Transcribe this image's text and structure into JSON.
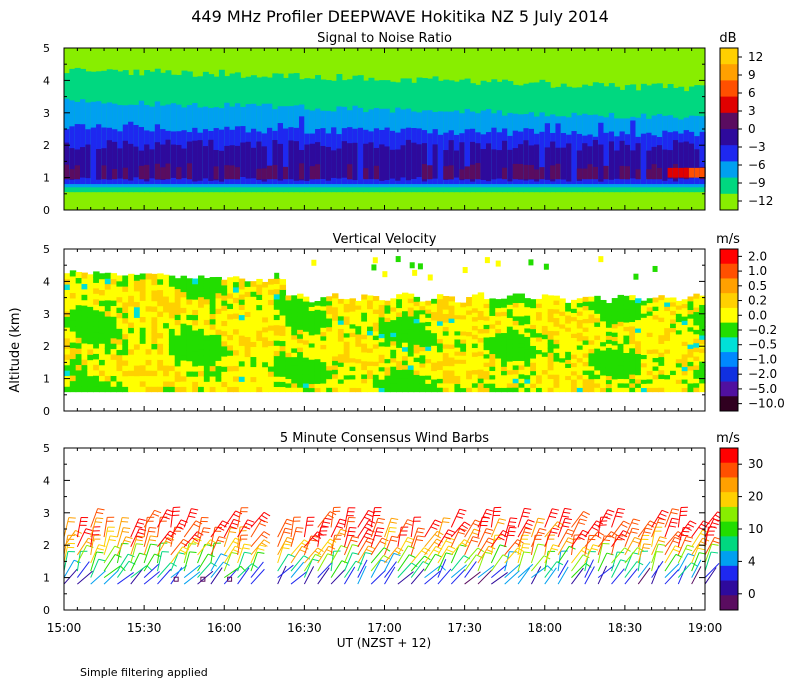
{
  "title": "449 MHz Profiler DEEPWAVE Hokitika NZ  5 July 2014",
  "ylabel": "Altitude (km)",
  "xlabel": "UT  (NZST + 12)",
  "x_ticks": [
    "15:00",
    "15:30",
    "16:00",
    "16:30",
    "17:00",
    "17:30",
    "18:00",
    "18:30",
    "19:00"
  ],
  "footnote": "Simple filtering applied",
  "chart_data": [
    {
      "type": "heatmap",
      "title": "Signal to Noise Ratio",
      "unit": "dB",
      "xlim": [
        "15:00",
        "19:00"
      ],
      "ylim": [
        0,
        5
      ],
      "yticks": [
        "0",
        "1",
        "2",
        "3",
        "4",
        "5"
      ],
      "colorbar": {
        "labels": [
          "12",
          "9",
          "6",
          "3",
          "0",
          "−3",
          "−6",
          "−9",
          "−12"
        ],
        "colors": [
          "#ffd000",
          "#ffa000",
          "#ff5000",
          "#e00000",
          "#5a0c60",
          "#2e0a9c",
          "#1e28f0",
          "#00a0f0",
          "#00d880",
          "#88ee00"
        ]
      },
      "layers": [
        {
          "band": "<-12",
          "color": "#88ee00",
          "approx_alt_km": "0.0-0.5 and above 4.3"
        },
        {
          "band": "-12 to -9",
          "color": "#00d880",
          "approx_alt_km": "3.3-4.3"
        },
        {
          "band": "-9 to -6",
          "color": "#00a0f0",
          "approx_alt_km": "2.6-3.3"
        },
        {
          "band": "-6 to -3",
          "color": "#1e28f0",
          "approx_alt_km": "0.8-2.5"
        },
        {
          "band": "-3 to 3",
          "color": "#2e0a9c",
          "approx_alt_km": "0.9-2.0"
        },
        {
          "band": "max near 19:00",
          "color": "#ff5000",
          "approx_alt_km": "1.0-1.3"
        }
      ]
    },
    {
      "type": "heatmap",
      "title": "Vertical Velocity",
      "unit": "m/s",
      "xlim": [
        "15:00",
        "19:00"
      ],
      "ylim": [
        0,
        5
      ],
      "yticks": [
        "0",
        "1",
        "2",
        "3",
        "4",
        "5"
      ],
      "colorbar": {
        "labels": [
          "2.0",
          "1.0",
          "0.5",
          "0.2",
          "0.0",
          "−0.2",
          "−0.5",
          "−1.0",
          "−2.0",
          "−5.0",
          "−10.0"
        ],
        "colors": [
          "#ff0000",
          "#ff5000",
          "#ffa000",
          "#ffd000",
          "#ffff00",
          "#22dd00",
          "#00e0d8",
          "#0088ff",
          "#1030e0",
          "#5010a0",
          "#300020"
        ]
      },
      "data_extent_km": {
        "bottom": 0.6,
        "top_start": 4.3,
        "top_end": 3.6
      },
      "dominant_values": [
        "0.0",
        "−0.2",
        "0.2"
      ]
    },
    {
      "type": "wind-barbs",
      "title": "5 Minute Consensus Wind Barbs",
      "unit": "m/s",
      "xlim": [
        "15:00",
        "19:00"
      ],
      "ylim": [
        0,
        5
      ],
      "yticks": [
        "0",
        "1",
        "2",
        "3",
        "4",
        "5"
      ],
      "colorbar": {
        "labels": [
          "30",
          "20",
          "10",
          "4",
          "0"
        ],
        "colors": [
          "#ff0000",
          "#ff5000",
          "#ffa000",
          "#ffd000",
          "#88ee00",
          "#22dd00",
          "#00d880",
          "#00a0f0",
          "#1e28f0",
          "#2e0a9c",
          "#5a0c60"
        ]
      },
      "levels_km": [
        0.8,
        1.0,
        1.2,
        1.45,
        1.7,
        1.95,
        2.25,
        2.55
      ],
      "speed_by_level_ms": [
        2,
        4,
        6,
        8,
        10,
        11,
        12,
        13
      ]
    }
  ]
}
